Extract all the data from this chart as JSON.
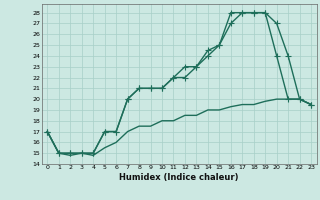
{
  "xlabel": "Humidex (Indice chaleur)",
  "xlim": [
    -0.5,
    23.5
  ],
  "ylim": [
    14,
    28.8
  ],
  "yticks": [
    14,
    15,
    16,
    17,
    18,
    19,
    20,
    21,
    22,
    23,
    24,
    25,
    26,
    27,
    28
  ],
  "xticks": [
    0,
    1,
    2,
    3,
    4,
    5,
    6,
    7,
    8,
    9,
    10,
    11,
    12,
    13,
    14,
    15,
    16,
    17,
    18,
    19,
    20,
    21,
    22,
    23
  ],
  "bg_color": "#cce8e2",
  "grid_color": "#a8cfc8",
  "line_color": "#1e6e5a",
  "line1_x": [
    0,
    1,
    2,
    3,
    4,
    5,
    6,
    7,
    8,
    9,
    10,
    11,
    12,
    13,
    14,
    15,
    16,
    17,
    18,
    19,
    20,
    21,
    22,
    23
  ],
  "line1_y": [
    17,
    15,
    15,
    15,
    15,
    17,
    17,
    20,
    21,
    21,
    21,
    22,
    23,
    23,
    24,
    25,
    27,
    28,
    28,
    28,
    27,
    24,
    20,
    19.5
  ],
  "line2_x": [
    0,
    1,
    2,
    3,
    4,
    5,
    6,
    7,
    8,
    9,
    10,
    11,
    12,
    13,
    14,
    15,
    16,
    17,
    18,
    19,
    20,
    21,
    22,
    23
  ],
  "line2_y": [
    17,
    15,
    15,
    15,
    15,
    17,
    17,
    20,
    21,
    21,
    21,
    22,
    22,
    23,
    24.5,
    25,
    28,
    28,
    28,
    28,
    24,
    20,
    20,
    19.5
  ],
  "line3_x": [
    0,
    1,
    2,
    3,
    4,
    5,
    6,
    7,
    8,
    9,
    10,
    11,
    12,
    13,
    14,
    15,
    16,
    17,
    18,
    19,
    20,
    21,
    22,
    23
  ],
  "line3_y": [
    17,
    15,
    14.8,
    15,
    14.8,
    15.5,
    16,
    17,
    17.5,
    17.5,
    18,
    18,
    18.5,
    18.5,
    19,
    19,
    19.3,
    19.5,
    19.5,
    19.8,
    20,
    20,
    20,
    19.5
  ]
}
